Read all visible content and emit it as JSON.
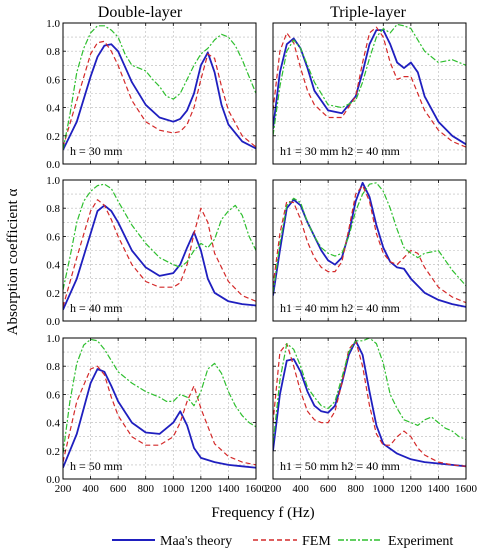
{
  "figure": {
    "col_titles": [
      "Double-layer",
      "Triple-layer"
    ],
    "ylabel": "Absorption coefficient α",
    "xlabel": "Frequency f (Hz)",
    "xticks": [
      "200",
      "400",
      "600",
      "800",
      "1000",
      "1200",
      "1400",
      "1600"
    ],
    "yticks": [
      "0.0",
      "0.2",
      "0.4",
      "0.6",
      "0.8",
      "1.0"
    ],
    "legend": [
      {
        "label": "Maa's theory",
        "color": "#1f1fbf",
        "dash": "solid"
      },
      {
        "label": "FEM",
        "color": "#d42a2a",
        "dash": "dashed"
      },
      {
        "label": "Experiment",
        "color": "#2fbf2f",
        "dash": "dash-dot"
      }
    ]
  },
  "chart_data": [
    {
      "type": "line",
      "panel": "double-1",
      "annotation": "h = 30 mm",
      "xlim": [
        200,
        1600
      ],
      "ylim": [
        0,
        1
      ],
      "grid": true,
      "series": [
        {
          "name": "Maa's theory",
          "x": [
            200,
            300,
            400,
            450,
            500,
            550,
            600,
            700,
            800,
            900,
            1000,
            1050,
            1100,
            1150,
            1200,
            1250,
            1300,
            1350,
            1400,
            1500,
            1600
          ],
          "y": [
            0.1,
            0.3,
            0.62,
            0.76,
            0.84,
            0.85,
            0.8,
            0.58,
            0.42,
            0.33,
            0.3,
            0.32,
            0.38,
            0.5,
            0.7,
            0.79,
            0.65,
            0.42,
            0.28,
            0.16,
            0.11
          ]
        },
        {
          "name": "FEM",
          "x": [
            200,
            300,
            400,
            450,
            500,
            550,
            600,
            700,
            800,
            900,
            1000,
            1050,
            1100,
            1150,
            1200,
            1250,
            1300,
            1350,
            1400,
            1500,
            1600
          ],
          "y": [
            0.12,
            0.45,
            0.78,
            0.86,
            0.87,
            0.8,
            0.7,
            0.45,
            0.3,
            0.24,
            0.22,
            0.23,
            0.28,
            0.4,
            0.6,
            0.78,
            0.75,
            0.55,
            0.38,
            0.2,
            0.12
          ]
        },
        {
          "name": "Experiment",
          "x": [
            200,
            250,
            300,
            350,
            400,
            450,
            500,
            550,
            600,
            650,
            700,
            750,
            800,
            850,
            900,
            950,
            1000,
            1050,
            1100,
            1150,
            1200,
            1250,
            1300,
            1350,
            1400,
            1450,
            1500,
            1550,
            1600
          ],
          "y": [
            0.1,
            0.35,
            0.65,
            0.82,
            0.93,
            0.98,
            0.98,
            0.95,
            0.9,
            0.78,
            0.7,
            0.68,
            0.66,
            0.6,
            0.55,
            0.48,
            0.46,
            0.5,
            0.6,
            0.7,
            0.78,
            0.82,
            0.88,
            0.92,
            0.9,
            0.84,
            0.74,
            0.62,
            0.5
          ]
        }
      ]
    },
    {
      "type": "line",
      "panel": "triple-1",
      "annotation": "h1 = 30 mm  h2 = 40 mm",
      "xlim": [
        200,
        1600
      ],
      "ylim": [
        0,
        1
      ],
      "grid": true,
      "series": [
        {
          "name": "Maa's theory",
          "x": [
            200,
            250,
            300,
            350,
            400,
            450,
            500,
            600,
            700,
            800,
            850,
            900,
            950,
            1000,
            1050,
            1100,
            1150,
            1200,
            1250,
            1300,
            1400,
            1500,
            1600
          ],
          "y": [
            0.25,
            0.65,
            0.85,
            0.89,
            0.82,
            0.68,
            0.52,
            0.38,
            0.36,
            0.48,
            0.65,
            0.85,
            0.95,
            0.95,
            0.85,
            0.72,
            0.68,
            0.72,
            0.65,
            0.48,
            0.3,
            0.2,
            0.14
          ]
        },
        {
          "name": "FEM",
          "x": [
            200,
            250,
            300,
            350,
            400,
            450,
            500,
            600,
            700,
            800,
            850,
            900,
            950,
            1000,
            1050,
            1100,
            1150,
            1200,
            1250,
            1300,
            1400,
            1500,
            1600
          ],
          "y": [
            0.38,
            0.8,
            0.93,
            0.86,
            0.68,
            0.52,
            0.42,
            0.33,
            0.33,
            0.48,
            0.72,
            0.93,
            0.97,
            0.9,
            0.72,
            0.6,
            0.62,
            0.62,
            0.5,
            0.38,
            0.24,
            0.16,
            0.12
          ]
        },
        {
          "name": "Experiment",
          "x": [
            200,
            250,
            300,
            350,
            400,
            450,
            500,
            600,
            700,
            800,
            850,
            900,
            950,
            1000,
            1050,
            1100,
            1150,
            1200,
            1250,
            1300,
            1400,
            1500,
            1600
          ],
          "y": [
            0.2,
            0.55,
            0.8,
            0.88,
            0.82,
            0.7,
            0.58,
            0.42,
            0.4,
            0.45,
            0.58,
            0.75,
            0.9,
            0.96,
            0.93,
            0.99,
            0.98,
            0.96,
            0.88,
            0.8,
            0.72,
            0.74,
            0.7
          ]
        }
      ]
    },
    {
      "type": "line",
      "panel": "double-2",
      "annotation": "h = 40 mm",
      "xlim": [
        200,
        1600
      ],
      "ylim": [
        0,
        1
      ],
      "grid": true,
      "series": [
        {
          "name": "Maa's theory",
          "x": [
            200,
            300,
            400,
            450,
            500,
            550,
            600,
            700,
            800,
            900,
            1000,
            1050,
            1100,
            1150,
            1200,
            1250,
            1300,
            1400,
            1500,
            1600
          ],
          "y": [
            0.08,
            0.3,
            0.62,
            0.78,
            0.82,
            0.78,
            0.7,
            0.5,
            0.38,
            0.32,
            0.34,
            0.4,
            0.52,
            0.63,
            0.5,
            0.3,
            0.2,
            0.14,
            0.12,
            0.11
          ]
        },
        {
          "name": "FEM",
          "x": [
            200,
            300,
            400,
            450,
            500,
            550,
            600,
            700,
            800,
            900,
            1000,
            1050,
            1100,
            1150,
            1200,
            1250,
            1300,
            1400,
            1500,
            1600
          ],
          "y": [
            0.1,
            0.45,
            0.78,
            0.86,
            0.82,
            0.72,
            0.6,
            0.4,
            0.28,
            0.24,
            0.24,
            0.27,
            0.4,
            0.62,
            0.8,
            0.7,
            0.48,
            0.28,
            0.18,
            0.14
          ]
        },
        {
          "name": "Experiment",
          "x": [
            200,
            250,
            300,
            350,
            400,
            450,
            500,
            550,
            600,
            700,
            800,
            900,
            1000,
            1050,
            1100,
            1150,
            1200,
            1250,
            1300,
            1350,
            1400,
            1450,
            1500,
            1550,
            1600
          ],
          "y": [
            0.22,
            0.45,
            0.7,
            0.85,
            0.92,
            0.96,
            0.97,
            0.94,
            0.85,
            0.68,
            0.55,
            0.45,
            0.4,
            0.38,
            0.42,
            0.5,
            0.55,
            0.52,
            0.58,
            0.72,
            0.78,
            0.82,
            0.75,
            0.6,
            0.5
          ]
        }
      ]
    },
    {
      "type": "line",
      "panel": "triple-2",
      "annotation": "h1 = 40 mm  h2 = 40 mm",
      "xlim": [
        200,
        1600
      ],
      "ylim": [
        0,
        1
      ],
      "grid": true,
      "series": [
        {
          "name": "Maa's theory",
          "x": [
            200,
            250,
            300,
            350,
            400,
            450,
            500,
            550,
            600,
            650,
            700,
            750,
            800,
            850,
            900,
            950,
            1000,
            1050,
            1100,
            1150,
            1200,
            1300,
            1400,
            1500,
            1600
          ],
          "y": [
            0.18,
            0.5,
            0.8,
            0.86,
            0.82,
            0.7,
            0.6,
            0.5,
            0.43,
            0.4,
            0.45,
            0.62,
            0.85,
            0.98,
            0.88,
            0.68,
            0.52,
            0.42,
            0.38,
            0.37,
            0.3,
            0.2,
            0.15,
            0.12,
            0.1
          ]
        },
        {
          "name": "FEM",
          "x": [
            200,
            250,
            300,
            350,
            400,
            450,
            500,
            550,
            600,
            650,
            700,
            750,
            800,
            850,
            900,
            950,
            1000,
            1050,
            1100,
            1150,
            1200,
            1250,
            1300,
            1400,
            1500,
            1600
          ],
          "y": [
            0.25,
            0.62,
            0.85,
            0.84,
            0.72,
            0.56,
            0.45,
            0.38,
            0.35,
            0.35,
            0.42,
            0.65,
            0.9,
            0.96,
            0.85,
            0.62,
            0.48,
            0.42,
            0.4,
            0.45,
            0.5,
            0.48,
            0.38,
            0.24,
            0.17,
            0.13
          ]
        },
        {
          "name": "Experiment",
          "x": [
            200,
            250,
            300,
            350,
            400,
            450,
            500,
            550,
            600,
            650,
            700,
            750,
            800,
            850,
            900,
            950,
            1000,
            1050,
            1100,
            1150,
            1200,
            1250,
            1300,
            1400,
            1500,
            1600
          ],
          "y": [
            0.2,
            0.55,
            0.82,
            0.87,
            0.84,
            0.7,
            0.6,
            0.52,
            0.48,
            0.46,
            0.48,
            0.6,
            0.78,
            0.9,
            0.97,
            0.98,
            0.92,
            0.8,
            0.65,
            0.52,
            0.48,
            0.45,
            0.48,
            0.5,
            0.36,
            0.25
          ]
        }
      ]
    },
    {
      "type": "line",
      "panel": "double-3",
      "annotation": "h = 50 mm",
      "xlim": [
        200,
        1600
      ],
      "ylim": [
        0,
        1
      ],
      "grid": true,
      "series": [
        {
          "name": "Maa's theory",
          "x": [
            200,
            300,
            400,
            450,
            500,
            550,
            600,
            700,
            800,
            900,
            1000,
            1050,
            1100,
            1150,
            1200,
            1300,
            1400,
            1500,
            1600
          ],
          "y": [
            0.08,
            0.32,
            0.68,
            0.78,
            0.76,
            0.66,
            0.55,
            0.4,
            0.33,
            0.32,
            0.4,
            0.48,
            0.38,
            0.22,
            0.15,
            0.12,
            0.1,
            0.09,
            0.08
          ]
        },
        {
          "name": "FEM",
          "x": [
            200,
            300,
            400,
            450,
            500,
            550,
            600,
            700,
            800,
            900,
            1000,
            1050,
            1100,
            1150,
            1200,
            1300,
            1400,
            1500,
            1600
          ],
          "y": [
            0.12,
            0.55,
            0.78,
            0.8,
            0.74,
            0.58,
            0.45,
            0.3,
            0.24,
            0.24,
            0.3,
            0.4,
            0.55,
            0.66,
            0.5,
            0.25,
            0.16,
            0.12,
            0.1
          ]
        },
        {
          "name": "Experiment",
          "x": [
            200,
            250,
            300,
            350,
            400,
            450,
            500,
            550,
            600,
            700,
            800,
            850,
            900,
            950,
            1000,
            1050,
            1100,
            1150,
            1200,
            1250,
            1300,
            1350,
            1400,
            1450,
            1500,
            1550,
            1600
          ],
          "y": [
            0.18,
            0.55,
            0.82,
            0.95,
            0.99,
            0.98,
            0.92,
            0.84,
            0.76,
            0.68,
            0.62,
            0.6,
            0.58,
            0.55,
            0.55,
            0.6,
            0.58,
            0.52,
            0.62,
            0.78,
            0.82,
            0.75,
            0.62,
            0.52,
            0.45,
            0.4,
            0.37
          ]
        }
      ]
    },
    {
      "type": "line",
      "panel": "triple-3",
      "annotation": "h1 = 50 mm  h2 = 40 mm",
      "xlim": [
        200,
        1600
      ],
      "ylim": [
        0,
        1
      ],
      "grid": true,
      "series": [
        {
          "name": "Maa's theory",
          "x": [
            200,
            250,
            300,
            350,
            400,
            450,
            500,
            550,
            600,
            650,
            700,
            750,
            800,
            850,
            900,
            950,
            1000,
            1100,
            1200,
            1300,
            1400,
            1500,
            1600
          ],
          "y": [
            0.2,
            0.6,
            0.84,
            0.85,
            0.76,
            0.62,
            0.52,
            0.48,
            0.47,
            0.52,
            0.68,
            0.88,
            0.98,
            0.88,
            0.62,
            0.38,
            0.25,
            0.18,
            0.14,
            0.12,
            0.11,
            0.1,
            0.09
          ]
        },
        {
          "name": "FEM",
          "x": [
            200,
            250,
            300,
            350,
            400,
            450,
            500,
            550,
            600,
            650,
            700,
            750,
            800,
            850,
            900,
            950,
            1000,
            1050,
            1100,
            1150,
            1200,
            1250,
            1300,
            1400,
            1500,
            1600
          ],
          "y": [
            0.4,
            0.9,
            0.96,
            0.8,
            0.62,
            0.48,
            0.42,
            0.4,
            0.4,
            0.48,
            0.68,
            0.92,
            0.98,
            0.8,
            0.52,
            0.32,
            0.24,
            0.24,
            0.3,
            0.34,
            0.3,
            0.22,
            0.17,
            0.12,
            0.1,
            0.09
          ]
        },
        {
          "name": "Experiment",
          "x": [
            200,
            250,
            300,
            350,
            400,
            450,
            500,
            550,
            600,
            650,
            700,
            750,
            800,
            850,
            900,
            950,
            1000,
            1050,
            1100,
            1150,
            1200,
            1250,
            1300,
            1350,
            1400,
            1450,
            1500,
            1550,
            1600
          ],
          "y": [
            0.25,
            0.7,
            0.96,
            0.92,
            0.8,
            0.65,
            0.58,
            0.52,
            0.5,
            0.55,
            0.72,
            0.9,
            0.98,
            0.98,
            1.0,
            0.96,
            0.82,
            0.6,
            0.5,
            0.42,
            0.4,
            0.38,
            0.42,
            0.44,
            0.4,
            0.36,
            0.34,
            0.3,
            0.28
          ]
        }
      ]
    }
  ]
}
